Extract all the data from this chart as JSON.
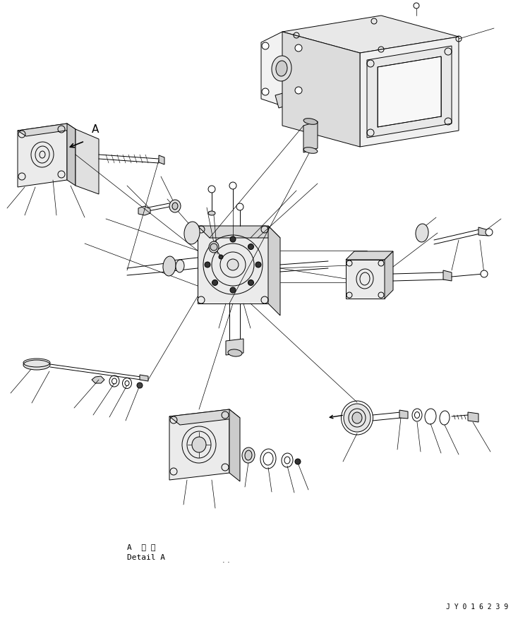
{
  "bg_color": "#ffffff",
  "line_color": "#000000",
  "fig_width": 7.34,
  "fig_height": 8.77,
  "dpi": 100,
  "detail_text": "A 詳細\nDetail A",
  "part_number": "J Y 0 1 6 2 3 9"
}
